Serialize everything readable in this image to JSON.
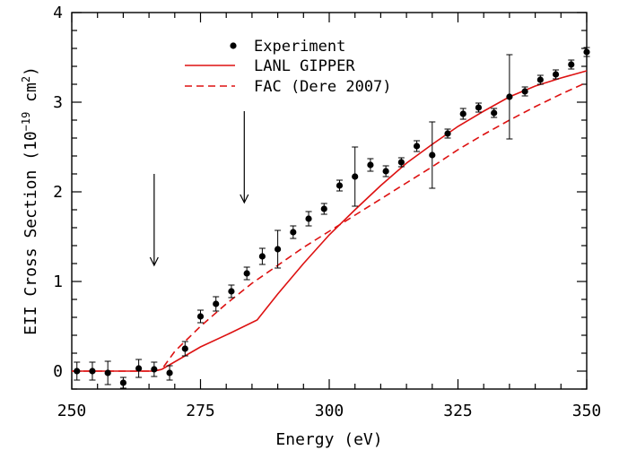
{
  "chart_data": {
    "type": "scatter",
    "xlabel": "Energy (eV)",
    "ylabel": {
      "prefix": "EII Cross Section (10",
      "exp": "−19",
      "mid": " cm",
      "sq": "2",
      "suffix": ")"
    },
    "xlim": [
      250,
      350
    ],
    "ylim": [
      -0.2,
      4
    ],
    "xticks": [
      250,
      275,
      300,
      325,
      350
    ],
    "yticks": [
      0,
      1,
      2,
      3,
      4
    ],
    "grid": false,
    "legend_position": "top-center",
    "colors": {
      "experiment": "#000000",
      "model": "#dd1111",
      "arrow": "#000000"
    },
    "legend": {
      "experiment": "Experiment",
      "lanl": "LANL GIPPER",
      "fac": "FAC (Dere 2007)"
    },
    "experiment": {
      "name": "Experiment",
      "points": [
        {
          "x": 251,
          "y": 0.0,
          "err": 0.1
        },
        {
          "x": 254,
          "y": 0.0,
          "err": 0.1
        },
        {
          "x": 257,
          "y": -0.02,
          "err": 0.13
        },
        {
          "x": 260,
          "y": -0.13,
          "err": 0.06
        },
        {
          "x": 263,
          "y": 0.03,
          "err": 0.1
        },
        {
          "x": 266,
          "y": 0.02,
          "err": 0.08
        },
        {
          "x": 269,
          "y": -0.02,
          "err": 0.08
        },
        {
          "x": 272,
          "y": 0.25,
          "err": 0.08
        },
        {
          "x": 275,
          "y": 0.61,
          "err": 0.07
        },
        {
          "x": 278,
          "y": 0.75,
          "err": 0.08
        },
        {
          "x": 281,
          "y": 0.89,
          "err": 0.07
        },
        {
          "x": 284,
          "y": 1.09,
          "err": 0.07
        },
        {
          "x": 287,
          "y": 1.28,
          "err": 0.09
        },
        {
          "x": 290,
          "y": 1.36,
          "err": 0.21
        },
        {
          "x": 293,
          "y": 1.55,
          "err": 0.07
        },
        {
          "x": 296,
          "y": 1.7,
          "err": 0.08
        },
        {
          "x": 299,
          "y": 1.81,
          "err": 0.06
        },
        {
          "x": 302,
          "y": 2.07,
          "err": 0.06
        },
        {
          "x": 305,
          "y": 2.17,
          "err": 0.33
        },
        {
          "x": 308,
          "y": 2.3,
          "err": 0.07
        },
        {
          "x": 311,
          "y": 2.23,
          "err": 0.06
        },
        {
          "x": 314,
          "y": 2.33,
          "err": 0.05
        },
        {
          "x": 317,
          "y": 2.51,
          "err": 0.06
        },
        {
          "x": 320,
          "y": 2.41,
          "err": 0.37
        },
        {
          "x": 323,
          "y": 2.65,
          "err": 0.05
        },
        {
          "x": 326,
          "y": 2.87,
          "err": 0.06
        },
        {
          "x": 329,
          "y": 2.94,
          "err": 0.05
        },
        {
          "x": 332,
          "y": 2.88,
          "err": 0.05
        },
        {
          "x": 335,
          "y": 3.06,
          "err": 0.47
        },
        {
          "x": 338,
          "y": 3.12,
          "err": 0.05
        },
        {
          "x": 341,
          "y": 3.25,
          "err": 0.05
        },
        {
          "x": 344,
          "y": 3.31,
          "err": 0.05
        },
        {
          "x": 347,
          "y": 3.42,
          "err": 0.05
        },
        {
          "x": 350,
          "y": 3.56,
          "err": 0.05
        }
      ]
    },
    "lanl_gipper": {
      "name": "LANL GIPPER",
      "x": [
        250,
        266,
        267.5,
        275,
        281,
        286,
        290,
        295,
        300,
        305,
        310,
        315,
        320,
        325,
        330,
        335,
        340,
        345,
        350
      ],
      "y": [
        0.0,
        0.0,
        0.02,
        0.27,
        0.43,
        0.57,
        0.86,
        1.2,
        1.52,
        1.8,
        2.07,
        2.32,
        2.53,
        2.73,
        2.9,
        3.06,
        3.18,
        3.27,
        3.35
      ]
    },
    "fac_dere": {
      "name": "FAC (Dere 2007)",
      "x": [
        250,
        266,
        267.5,
        270,
        275,
        280,
        285,
        290,
        295,
        300,
        305,
        310,
        315,
        320,
        325,
        330,
        335,
        340,
        345,
        350
      ],
      "y": [
        0.0,
        0.0,
        0.02,
        0.22,
        0.5,
        0.75,
        0.98,
        1.18,
        1.38,
        1.56,
        1.74,
        1.92,
        2.1,
        2.28,
        2.47,
        2.64,
        2.8,
        2.95,
        3.09,
        3.22
      ]
    },
    "arrows": [
      {
        "x": 266,
        "y_from": 2.2,
        "y_to": 1.18
      },
      {
        "x": 283.5,
        "y_from": 2.9,
        "y_to": 1.88
      }
    ]
  }
}
